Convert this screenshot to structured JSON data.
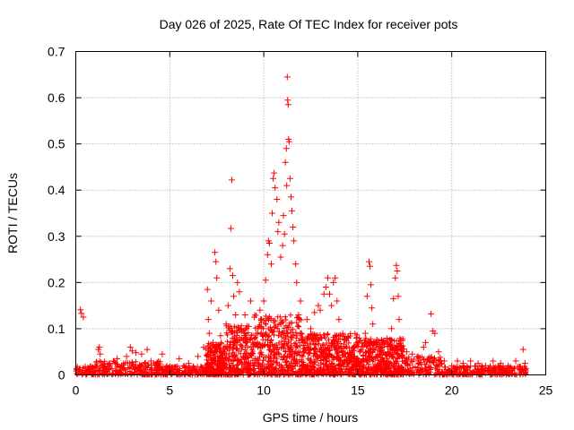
{
  "chart_data": {
    "type": "scatter",
    "title": "Day 026 of 2025, Rate Of TEC Index for receiver pots",
    "xlabel": "GPS time / hours",
    "ylabel": "ROTI / TECUs",
    "xlim": [
      0,
      25
    ],
    "ylim": [
      0,
      0.7
    ],
    "xticks": [
      "0",
      "5",
      "10",
      "15",
      "20",
      "25"
    ],
    "yticks": [
      "0",
      "0.1",
      "0.2",
      "0.3",
      "0.4",
      "0.5",
      "0.6",
      "0.7"
    ],
    "grid": true,
    "marker": "plus",
    "color": "#ff0000",
    "series": [
      {
        "name": "",
        "points": [
          [
            0.05,
            0.012
          ],
          [
            0.15,
            0.008
          ],
          [
            0.25,
            0.141
          ],
          [
            0.3,
            0.133
          ],
          [
            0.4,
            0.125
          ],
          [
            0.5,
            0.018
          ],
          [
            0.7,
            0.01
          ],
          [
            0.9,
            0.015
          ],
          [
            1.1,
            0.02
          ],
          [
            1.2,
            0.055
          ],
          [
            1.25,
            0.06
          ],
          [
            1.3,
            0.045
          ],
          [
            1.5,
            0.018
          ],
          [
            1.8,
            0.025
          ],
          [
            2.0,
            0.03
          ],
          [
            2.2,
            0.035
          ],
          [
            2.4,
            0.015
          ],
          [
            2.7,
            0.04
          ],
          [
            2.9,
            0.06
          ],
          [
            3.0,
            0.052
          ],
          [
            3.2,
            0.048
          ],
          [
            3.5,
            0.045
          ],
          [
            3.8,
            0.055
          ],
          [
            4.0,
            0.03
          ],
          [
            4.3,
            0.02
          ],
          [
            4.6,
            0.045
          ],
          [
            5.0,
            0.018
          ],
          [
            5.5,
            0.035
          ],
          [
            6.0,
            0.025
          ],
          [
            6.5,
            0.04
          ],
          [
            6.8,
            0.06
          ],
          [
            7.0,
            0.185
          ],
          [
            7.05,
            0.12
          ],
          [
            7.1,
            0.09
          ],
          [
            7.2,
            0.16
          ],
          [
            7.3,
            0.07
          ],
          [
            7.4,
            0.265
          ],
          [
            7.45,
            0.245
          ],
          [
            7.5,
            0.21
          ],
          [
            7.6,
            0.14
          ],
          [
            7.7,
            0.085
          ],
          [
            7.9,
            0.05
          ],
          [
            8.0,
            0.11
          ],
          [
            8.1,
            0.15
          ],
          [
            8.2,
            0.23
          ],
          [
            8.25,
            0.317
          ],
          [
            8.3,
            0.422
          ],
          [
            8.35,
            0.215
          ],
          [
            8.4,
            0.17
          ],
          [
            8.5,
            0.13
          ],
          [
            8.6,
            0.2
          ],
          [
            8.7,
            0.18
          ],
          [
            8.8,
            0.1
          ],
          [
            8.9,
            0.075
          ],
          [
            9.0,
            0.13
          ],
          [
            9.2,
            0.105
          ],
          [
            9.3,
            0.16
          ],
          [
            9.5,
            0.125
          ],
          [
            9.6,
            0.09
          ],
          [
            9.8,
            0.14
          ],
          [
            10.0,
            0.16
          ],
          [
            10.1,
            0.205
          ],
          [
            10.2,
            0.26
          ],
          [
            10.25,
            0.29
          ],
          [
            10.3,
            0.285
          ],
          [
            10.4,
            0.24
          ],
          [
            10.45,
            0.35
          ],
          [
            10.5,
            0.425
          ],
          [
            10.55,
            0.437
          ],
          [
            10.6,
            0.405
          ],
          [
            10.7,
            0.38
          ],
          [
            10.75,
            0.31
          ],
          [
            10.8,
            0.33
          ],
          [
            10.9,
            0.255
          ],
          [
            11.0,
            0.28
          ],
          [
            11.05,
            0.345
          ],
          [
            11.1,
            0.305
          ],
          [
            11.15,
            0.46
          ],
          [
            11.2,
            0.49
          ],
          [
            11.22,
            0.41
          ],
          [
            11.25,
            0.645
          ],
          [
            11.27,
            0.595
          ],
          [
            11.3,
            0.585
          ],
          [
            11.32,
            0.51
          ],
          [
            11.35,
            0.505
          ],
          [
            11.4,
            0.425
          ],
          [
            11.45,
            0.385
          ],
          [
            11.5,
            0.355
          ],
          [
            11.55,
            0.32
          ],
          [
            11.6,
            0.29
          ],
          [
            11.7,
            0.24
          ],
          [
            11.75,
            0.2
          ],
          [
            11.85,
            0.13
          ],
          [
            11.95,
            0.16
          ],
          [
            12.0,
            0.09
          ],
          [
            12.2,
            0.07
          ],
          [
            12.3,
            0.12
          ],
          [
            12.5,
            0.1
          ],
          [
            12.7,
            0.135
          ],
          [
            12.9,
            0.15
          ],
          [
            13.0,
            0.14
          ],
          [
            13.2,
            0.175
          ],
          [
            13.3,
            0.19
          ],
          [
            13.4,
            0.21
          ],
          [
            13.5,
            0.175
          ],
          [
            13.6,
            0.15
          ],
          [
            13.7,
            0.2
          ],
          [
            13.8,
            0.21
          ],
          [
            13.9,
            0.16
          ],
          [
            14.0,
            0.12
          ],
          [
            14.2,
            0.09
          ],
          [
            14.5,
            0.08
          ],
          [
            14.8,
            0.06
          ],
          [
            15.1,
            0.05
          ],
          [
            15.4,
            0.09
          ],
          [
            15.5,
            0.17
          ],
          [
            15.6,
            0.245
          ],
          [
            15.65,
            0.235
          ],
          [
            15.7,
            0.195
          ],
          [
            15.75,
            0.145
          ],
          [
            15.8,
            0.11
          ],
          [
            16.0,
            0.07
          ],
          [
            16.3,
            0.06
          ],
          [
            16.6,
            0.05
          ],
          [
            16.8,
            0.1
          ],
          [
            16.9,
            0.165
          ],
          [
            17.0,
            0.21
          ],
          [
            17.05,
            0.237
          ],
          [
            17.1,
            0.225
          ],
          [
            17.15,
            0.17
          ],
          [
            17.2,
            0.12
          ],
          [
            17.3,
            0.075
          ],
          [
            17.6,
            0.05
          ],
          [
            17.9,
            0.045
          ],
          [
            18.2,
            0.04
          ],
          [
            18.5,
            0.06
          ],
          [
            18.6,
            0.07
          ],
          [
            18.9,
            0.132
          ],
          [
            19.0,
            0.095
          ],
          [
            19.1,
            0.09
          ],
          [
            19.3,
            0.05
          ],
          [
            19.6,
            0.03
          ],
          [
            20.0,
            0.02
          ],
          [
            20.3,
            0.03
          ],
          [
            20.6,
            0.025
          ],
          [
            21.0,
            0.03
          ],
          [
            21.4,
            0.025
          ],
          [
            21.8,
            0.02
          ],
          [
            22.2,
            0.03
          ],
          [
            22.6,
            0.025
          ],
          [
            23.0,
            0.02
          ],
          [
            23.4,
            0.03
          ],
          [
            23.8,
            0.055
          ],
          [
            23.9,
            0.025
          ]
        ]
      }
    ]
  }
}
